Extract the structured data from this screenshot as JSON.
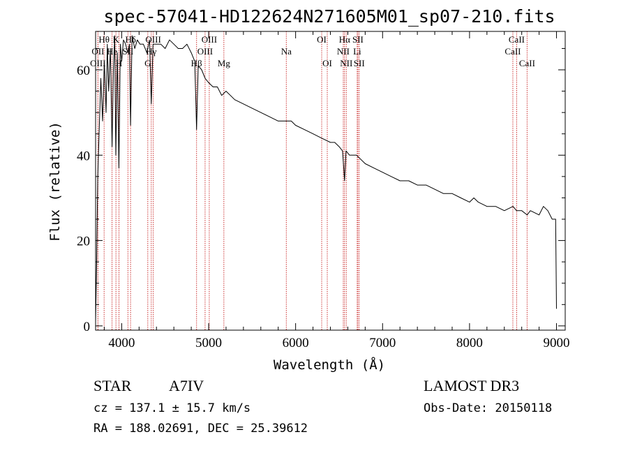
{
  "chart_data": {
    "type": "line",
    "title": "spec-57041-HD122624N271605M01_sp07-210.fits",
    "xlabel": "Wavelength (Å)",
    "ylabel": "Flux (relative)",
    "xlim": [
      3700,
      9100
    ],
    "ylim": [
      -1,
      69
    ],
    "x_ticks": [
      4000,
      5000,
      6000,
      7000,
      8000,
      9000
    ],
    "x_tick_labels": [
      "4000",
      "5000",
      "6000",
      "7000",
      "8000",
      "9000"
    ],
    "y_ticks": [
      0,
      20,
      40,
      60
    ],
    "y_tick_labels": [
      "0",
      "20",
      "40",
      "60"
    ],
    "series": [
      {
        "name": "spectrum",
        "color": "#000000",
        "x": [
          3700,
          3712,
          3725,
          3740,
          3760,
          3780,
          3800,
          3820,
          3835,
          3850,
          3870,
          3889,
          3905,
          3920,
          3933,
          3950,
          3968,
          3985,
          4000,
          4020,
          4045,
          4070,
          4090,
          4102,
          4120,
          4150,
          4180,
          4210,
          4250,
          4290,
          4320,
          4340,
          4360,
          4400,
          4450,
          4500,
          4550,
          4600,
          4650,
          4700,
          4750,
          4800,
          4840,
          4861,
          4880,
          4920,
          4960,
          5000,
          5050,
          5100,
          5150,
          5200,
          5250,
          5300,
          5400,
          5500,
          5600,
          5700,
          5800,
          5890,
          5950,
          6000,
          6100,
          6200,
          6300,
          6400,
          6450,
          6500,
          6540,
          6563,
          6580,
          6620,
          6700,
          6800,
          6900,
          7000,
          7100,
          7200,
          7300,
          7400,
          7500,
          7600,
          7700,
          7800,
          7900,
          8000,
          8050,
          8100,
          8200,
          8300,
          8400,
          8500,
          8540,
          8600,
          8662,
          8700,
          8800,
          8850,
          8900,
          8950,
          8990,
          9000
        ],
        "y": [
          1,
          15,
          35,
          45,
          58,
          48,
          62,
          50,
          66,
          55,
          65,
          42,
          60,
          68,
          40,
          64,
          37,
          66,
          62,
          67,
          66,
          64,
          66,
          47,
          68,
          65,
          67,
          66,
          66,
          64,
          67,
          52,
          66,
          66,
          66,
          65,
          67,
          66,
          65,
          65,
          66,
          64,
          62,
          46,
          61,
          60,
          58,
          57,
          56,
          56,
          54,
          55,
          54,
          53,
          52,
          51,
          50,
          49,
          48,
          48,
          48,
          47,
          46,
          45,
          44,
          43,
          43,
          42,
          41,
          34,
          41,
          40,
          40,
          38,
          37,
          36,
          35,
          34,
          34,
          33,
          33,
          32,
          31,
          31,
          30,
          29,
          30,
          29,
          28,
          28,
          27,
          28,
          27,
          27,
          26,
          27,
          26,
          28,
          27,
          25,
          25,
          4
        ]
      }
    ],
    "emission_lines": [
      {
        "label": "Hθ",
        "x": 3798,
        "row": 1
      },
      {
        "label": "OII",
        "x": 3727,
        "row": 2
      },
      {
        "label": "OIII",
        "x": 3727,
        "row": 3
      },
      {
        "label": "K",
        "x": 3934,
        "row": 1
      },
      {
        "label": "He",
        "x": 3889,
        "row": 2
      },
      {
        "label": "H",
        "x": 3969,
        "row": 3
      },
      {
        "label": "Hδ",
        "x": 4102,
        "row": 1
      },
      {
        "label": "SII",
        "x": 4072,
        "row": 2
      },
      {
        "label": "G",
        "x": 4300,
        "row": 3
      },
      {
        "label": "OIII",
        "x": 4363,
        "row": 1
      },
      {
        "label": "Hγ",
        "x": 4340,
        "row": 2
      },
      {
        "label": "Hβ",
        "x": 4861,
        "row": 3
      },
      {
        "label": "OIII",
        "x": 5007,
        "row": 1
      },
      {
        "label": "OIII",
        "x": 4959,
        "row": 2
      },
      {
        "label": "Mg",
        "x": 5175,
        "row": 3
      },
      {
        "label": "Na",
        "x": 5893,
        "row": 2
      },
      {
        "label": "OI",
        "x": 6300,
        "row": 1
      },
      {
        "label": "OI",
        "x": 6364,
        "row": 3
      },
      {
        "label": "Hα",
        "x": 6563,
        "row": 1
      },
      {
        "label": "SII",
        "x": 6716,
        "row": 1
      },
      {
        "label": "NII",
        "x": 6548,
        "row": 2
      },
      {
        "label": "Li",
        "x": 6708,
        "row": 2
      },
      {
        "label": "NII",
        "x": 6583,
        "row": 3
      },
      {
        "label": "SII",
        "x": 6731,
        "row": 3
      },
      {
        "label": "CaII",
        "x": 8542,
        "row": 1
      },
      {
        "label": "CaII",
        "x": 8498,
        "row": 2
      },
      {
        "label": "CaII",
        "x": 8662,
        "row": 3
      }
    ]
  },
  "info": {
    "object_class": "STAR",
    "subclass": "A7IV",
    "survey": "LAMOST DR3",
    "cz": "cz = 137.1 ± 15.7 km/s",
    "obs_date": "Obs-Date: 20150118",
    "coords": "RA = 188.02691, DEC =  25.39612"
  }
}
